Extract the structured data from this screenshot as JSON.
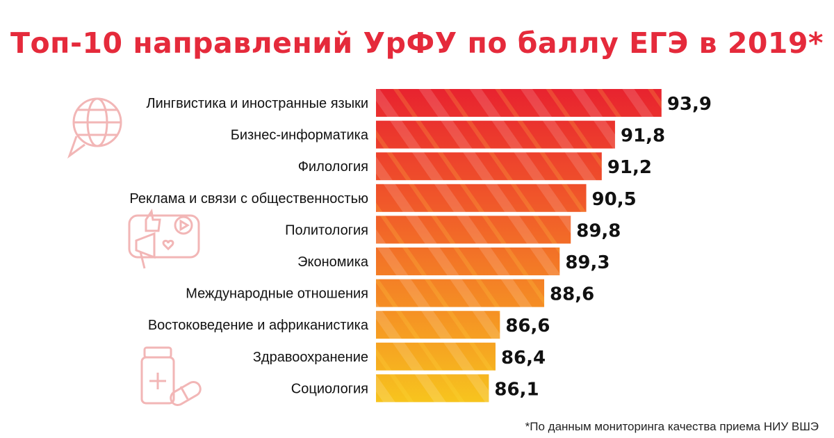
{
  "title": "Топ-10 направлений УрФУ по баллу ЕГЭ в 2019*",
  "footnote": "*По данным мониторинга качества приема НИУ ВШЭ",
  "colors": {
    "title": "#e52a3b",
    "bar_top": "#e8232f",
    "bar_bottom": "#f7c51e",
    "icon_stroke": "#f2b6b6"
  },
  "icons": [
    "globe-chat-icon",
    "lightbulb-dollar-icon",
    "social-media-megaphone-icon",
    "money-chart-icon",
    "medicine-bottle-icon"
  ],
  "chart_data": {
    "type": "bar",
    "orientation": "horizontal",
    "categories": [
      "Лингвистика и иностранные языки",
      "Бизнес-информатика",
      "Филология",
      "Реклама и связи с общественностью",
      "Политология",
      "Экономика",
      "Международные отношения",
      "Востоковедение и африканистика",
      "Здравоохранение",
      "Социология"
    ],
    "values": [
      93.9,
      91.8,
      91.2,
      90.5,
      89.8,
      89.3,
      88.6,
      86.6,
      86.4,
      86.1
    ],
    "value_labels": [
      "93,9",
      "91,8",
      "91,2",
      "90,5",
      "89,8",
      "89,3",
      "88,6",
      "86,6",
      "86,4",
      "86,1"
    ],
    "xlim": [
      81,
      94
    ]
  }
}
